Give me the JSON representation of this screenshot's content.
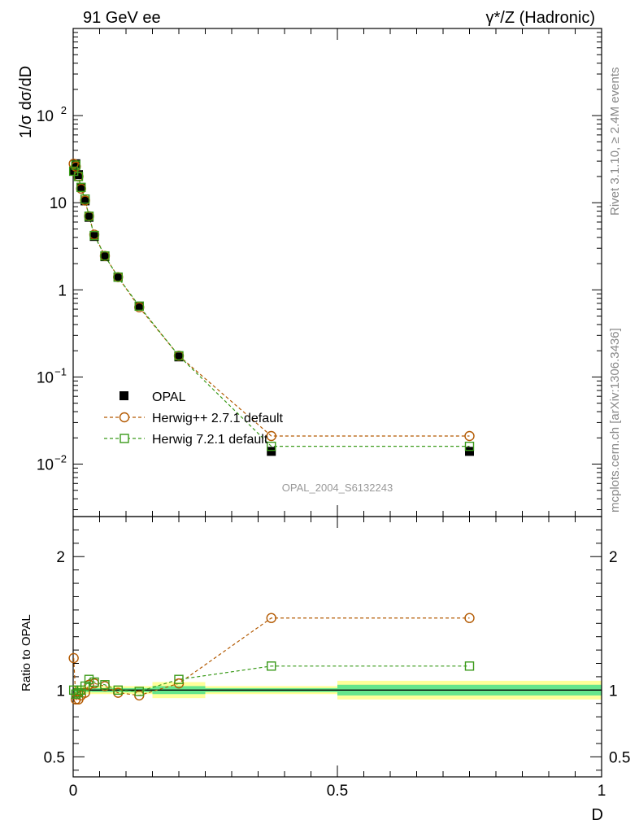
{
  "header": {
    "left": "91 GeV ee",
    "right": "γ*/Z (Hadronic)"
  },
  "side_text": {
    "rivet": "Rivet 3.1.10, ≥ 2.4M events",
    "mcplots": "mcplots.cern.ch [arXiv:1306.3436]"
  },
  "watermark": "OPAL_2004_S6132243",
  "colors": {
    "data": "#000000",
    "herwigpp": "#b35900",
    "herwig7": "#3a9a1a",
    "band_outer": "#ffff99",
    "band_inner": "#66e68c"
  },
  "chart_data": [
    {
      "type": "line",
      "panel": "main",
      "ylabel": "1/σ dσ/dD",
      "yscale": "log",
      "ylim": [
        0.0025,
        1000
      ],
      "xlim": [
        0,
        1
      ],
      "ytick_labels": [
        "10^-2",
        "10^-1",
        "1",
        "10",
        "10^2"
      ],
      "legend_placement": "lower-left",
      "series": [
        {
          "name": "OPAL",
          "marker": "filled-square",
          "x": [
            0.001,
            0.005,
            0.01,
            0.015,
            0.0225,
            0.03,
            0.04,
            0.06,
            0.085,
            0.125,
            0.2,
            0.375,
            0.75
          ],
          "y": [
            23,
            28,
            21,
            15,
            10.5,
            6.8,
            4.1,
            2.4,
            1.4,
            0.65,
            0.17,
            0.014,
            0.014
          ]
        },
        {
          "name": "Herwig++ 2.7.1 default",
          "marker": "open-circle",
          "x": [
            0.001,
            0.005,
            0.01,
            0.015,
            0.0225,
            0.03,
            0.04,
            0.06,
            0.085,
            0.125,
            0.2,
            0.375,
            0.75
          ],
          "y": [
            28,
            26,
            20,
            14.5,
            10.6,
            7.0,
            4.3,
            2.45,
            1.4,
            0.63,
            0.175,
            0.021,
            0.021
          ]
        },
        {
          "name": "Herwig 7.2.1 default",
          "marker": "open-square",
          "x": [
            0.001,
            0.005,
            0.01,
            0.015,
            0.0225,
            0.03,
            0.04,
            0.06,
            0.085,
            0.125,
            0.2,
            0.375,
            0.75
          ],
          "y": [
            23,
            27,
            20,
            15,
            11,
            7.0,
            4.2,
            2.45,
            1.4,
            0.65,
            0.175,
            0.016,
            0.016
          ]
        }
      ]
    },
    {
      "type": "line",
      "panel": "ratio",
      "ylabel": "Ratio to OPAL",
      "xlabel": "D",
      "ylim": [
        0.35,
        2.3
      ],
      "xlim": [
        0,
        1
      ],
      "ytick_labels": [
        "0.5",
        "1",
        "2"
      ],
      "xtick_labels": [
        "0",
        "0.5",
        "1"
      ],
      "bands": {
        "x_edges": [
          0,
          0.002,
          0.008,
          0.012,
          0.018,
          0.025,
          0.035,
          0.05,
          0.07,
          0.1,
          0.15,
          0.25,
          0.5,
          1.0
        ],
        "outer": [
          0.04,
          0.03,
          0.03,
          0.03,
          0.03,
          0.03,
          0.03,
          0.03,
          0.03,
          0.03,
          0.06,
          0.03,
          0.07
        ],
        "inner": [
          0.02,
          0.015,
          0.015,
          0.015,
          0.015,
          0.015,
          0.015,
          0.015,
          0.015,
          0.015,
          0.03,
          0.015,
          0.04
        ]
      },
      "series": [
        {
          "name": "Herwig++ 2.7.1 default",
          "x": [
            0.001,
            0.005,
            0.01,
            0.015,
            0.0225,
            0.03,
            0.04,
            0.06,
            0.085,
            0.125,
            0.2,
            0.375,
            0.75
          ],
          "y": [
            1.24,
            0.93,
            0.93,
            0.96,
            0.98,
            1.04,
            1.05,
            1.03,
            0.98,
            0.96,
            1.05,
            1.54,
            1.54
          ]
        },
        {
          "name": "Herwig 7.2.1 default",
          "x": [
            0.001,
            0.005,
            0.01,
            0.015,
            0.0225,
            0.03,
            0.04,
            0.06,
            0.085,
            0.125,
            0.2,
            0.375,
            0.75
          ],
          "y": [
            1.0,
            0.97,
            0.98,
            1.0,
            1.03,
            1.08,
            1.06,
            1.04,
            1.0,
            0.99,
            1.08,
            1.18,
            1.18
          ]
        }
      ]
    }
  ]
}
